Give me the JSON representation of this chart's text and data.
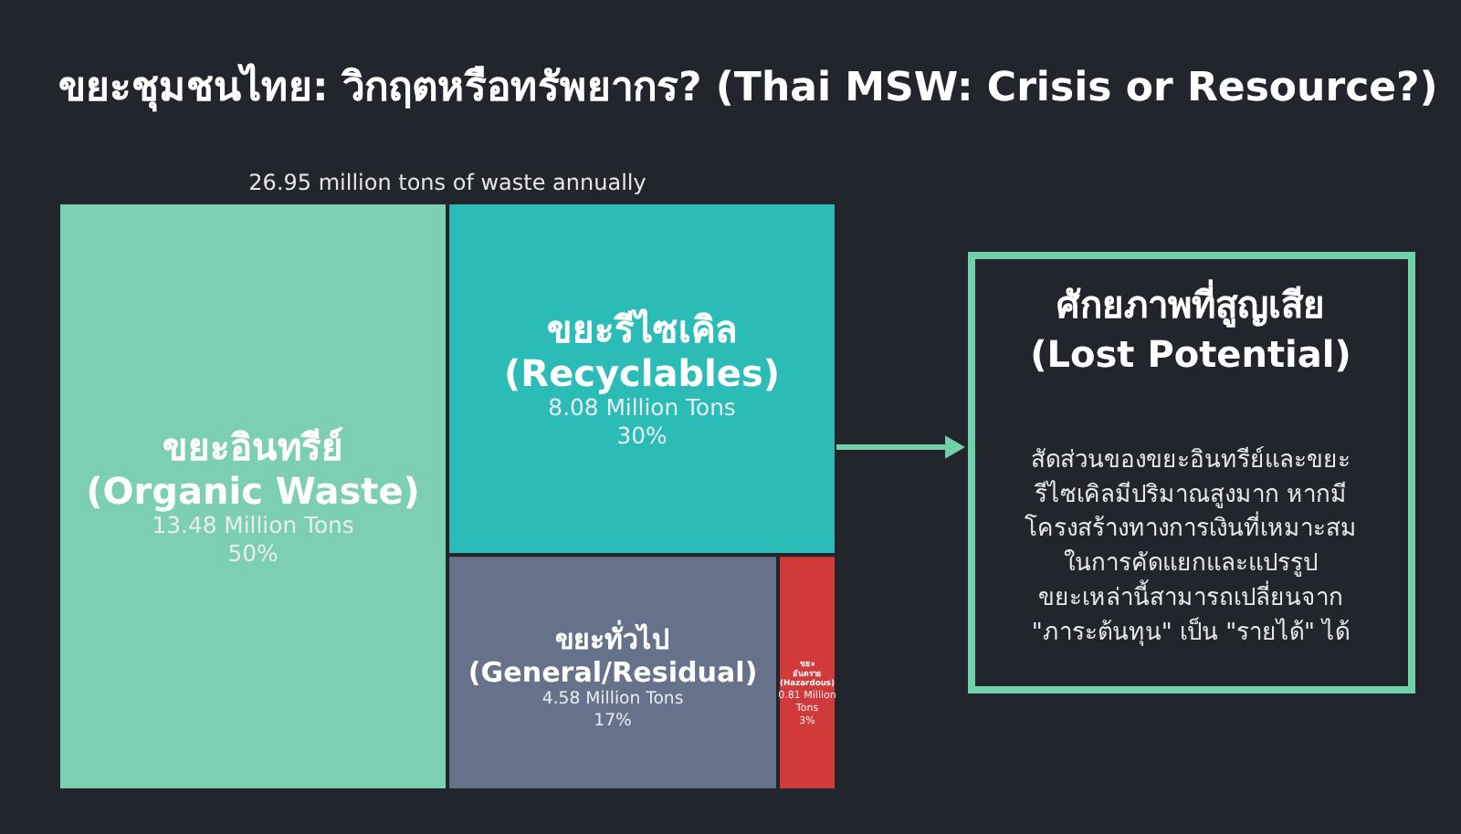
{
  "chart_data": {
    "type": "other",
    "title": "ขยะชุมชนไทย: วิกฤตหรือทรัพยากร? (Thai MSW: Crisis or Resource?)",
    "subtitle": "26.95 million tons of waste annually",
    "categories": [
      "ขยะอินทรีย์\n(Organic Waste)",
      "ขยะรีไซเคิล\n(Recyclables)",
      "ขยะทั่วไป\n(General/Residual)",
      "ขยะ\nอันตราย\n(Hazardous)"
    ],
    "values": [
      13.48,
      8.08,
      4.58,
      0.81
    ],
    "colors": [
      "#7ccfb0",
      "#2cbcb8",
      "#667289",
      "#d13a3a"
    ],
    "value_labels": [
      "13.48 Million Tons\n50%",
      "8.08 Million Tons\n30%",
      "4.58 Million Tons\n17%",
      "0.81 Million\nTons\n3%"
    ],
    "annotations": [
      "ศักยภาพที่สูญเสีย\n(Lost Potential)",
      "สัดส่วนของขยะอินทรีย์และขยะ\nรีไซเคิลมีปริมาณสูงมาก หากมี\nโครงสร้างทางการเงินที่เหมาะสม\nในการคัดแยกและแปรรูป\nขยะเหล่านี้สามารถเปลี่ยนจาก\n\"ภาระต้นทุน\" เป็น \"รายได้\" ได้"
    ]
  }
}
